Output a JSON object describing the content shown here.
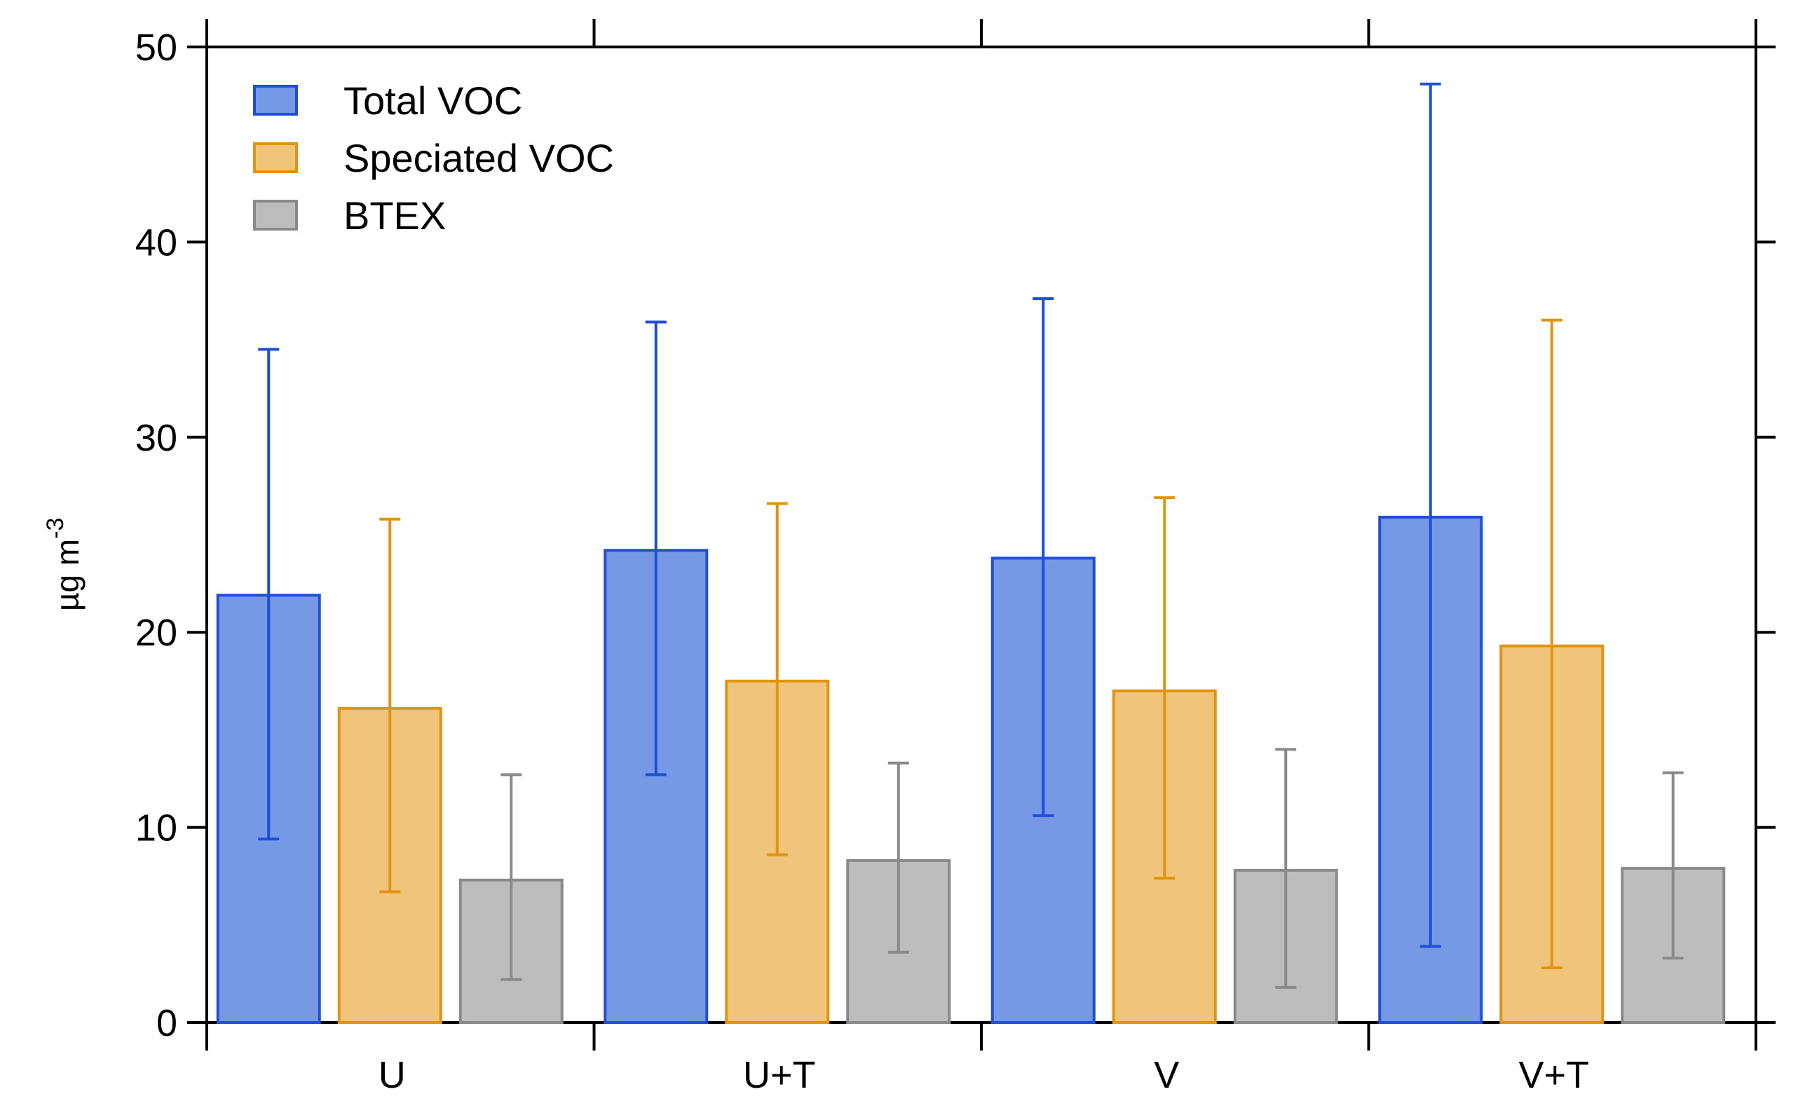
{
  "chart_data": {
    "type": "bar",
    "title": "",
    "xlabel": "",
    "ylabel": "µg m",
    "ylabel_exponent": "-3",
    "categories": [
      "U",
      "U+T",
      "V",
      "V+T"
    ],
    "ylim": [
      0,
      50
    ],
    "yticks": [
      "0",
      "10",
      "20",
      "30",
      "40",
      "50"
    ],
    "grid": false,
    "legend_position": "top-left",
    "series": [
      {
        "name": "Total VOC",
        "fill": "#7699e6",
        "stroke": "#1f4fd6",
        "values": [
          21.9,
          24.2,
          23.8,
          25.9
        ],
        "err_low": [
          9.4,
          12.7,
          10.6,
          3.9
        ],
        "err_high": [
          34.5,
          35.9,
          37.1,
          48.1
        ]
      },
      {
        "name": "Speciated VOC",
        "fill": "#f0c47a",
        "stroke": "#e3940f",
        "values": [
          16.1,
          17.5,
          17.0,
          19.3
        ],
        "err_low": [
          6.7,
          8.6,
          7.4,
          2.8
        ],
        "err_high": [
          25.8,
          26.6,
          26.9,
          36.0
        ]
      },
      {
        "name": "BTEX",
        "fill": "#bdbdbd",
        "stroke": "#8a8a8a",
        "values": [
          7.3,
          8.3,
          7.8,
          7.9
        ],
        "err_low": [
          2.2,
          3.6,
          1.8,
          3.3
        ],
        "err_high": [
          12.7,
          13.3,
          14.0,
          12.8
        ]
      }
    ]
  }
}
